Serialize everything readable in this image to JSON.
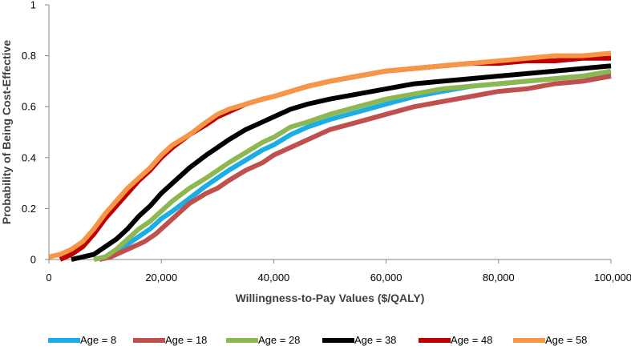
{
  "chart_data": {
    "type": "line",
    "title": "",
    "xlabel": "Willingness-to-Pay Values ($/QALY)",
    "ylabel": "Probability of Being Cost-Effective",
    "xlim": [
      0,
      100000
    ],
    "ylim": [
      0,
      1
    ],
    "x_ticks": [
      0,
      20000,
      40000,
      60000,
      80000,
      100000
    ],
    "x_tick_labels": [
      "0",
      "20,000",
      "40,000",
      "60,000",
      "80,000",
      "100,000"
    ],
    "y_ticks": [
      0,
      0.2,
      0.4,
      0.6,
      0.8,
      1
    ],
    "y_tick_labels": [
      "0",
      "0.2",
      "0.4",
      "0.6",
      "0.8",
      "1"
    ],
    "grid": false,
    "legend_position": "bottom",
    "series": [
      {
        "name": "Age = 8",
        "color": "#1CADE4",
        "x": [
          8000,
          10000,
          12000,
          14000,
          16000,
          18000,
          20000,
          22000,
          25000,
          28000,
          30000,
          32000,
          35000,
          38000,
          40000,
          43000,
          46000,
          50000,
          55000,
          60000,
          65000,
          70000,
          75000,
          80000,
          85000,
          90000,
          95000,
          100000
        ],
        "y": [
          0,
          0.01,
          0.03,
          0.06,
          0.09,
          0.12,
          0.16,
          0.19,
          0.24,
          0.29,
          0.32,
          0.35,
          0.39,
          0.43,
          0.45,
          0.49,
          0.52,
          0.55,
          0.58,
          0.61,
          0.64,
          0.66,
          0.68,
          0.69,
          0.7,
          0.71,
          0.72,
          0.73
        ]
      },
      {
        "name": "Age = 18",
        "color": "#C0504D",
        "x": [
          9000,
          11000,
          13000,
          15000,
          17000,
          19000,
          21000,
          23000,
          25000,
          28000,
          30000,
          32000,
          35000,
          38000,
          40000,
          43000,
          46000,
          50000,
          55000,
          60000,
          65000,
          70000,
          75000,
          80000,
          85000,
          90000,
          95000,
          100000
        ],
        "y": [
          0,
          0.01,
          0.03,
          0.05,
          0.07,
          0.1,
          0.14,
          0.18,
          0.22,
          0.26,
          0.28,
          0.31,
          0.35,
          0.38,
          0.41,
          0.44,
          0.47,
          0.51,
          0.54,
          0.57,
          0.6,
          0.62,
          0.64,
          0.66,
          0.67,
          0.69,
          0.7,
          0.72
        ]
      },
      {
        "name": "Age = 28",
        "color": "#8DB751",
        "x": [
          8000,
          10000,
          12000,
          14000,
          16000,
          18000,
          20000,
          22000,
          25000,
          28000,
          30000,
          32000,
          35000,
          38000,
          40000,
          43000,
          46000,
          50000,
          55000,
          60000,
          65000,
          70000,
          75000,
          80000,
          85000,
          90000,
          95000,
          100000
        ],
        "y": [
          0,
          0.01,
          0.04,
          0.08,
          0.12,
          0.15,
          0.19,
          0.23,
          0.28,
          0.32,
          0.35,
          0.38,
          0.42,
          0.46,
          0.48,
          0.52,
          0.54,
          0.57,
          0.6,
          0.63,
          0.65,
          0.67,
          0.68,
          0.69,
          0.7,
          0.71,
          0.72,
          0.74
        ]
      },
      {
        "name": "Age = 38",
        "color": "#000000",
        "x": [
          4000,
          6000,
          8000,
          10000,
          12000,
          14000,
          16000,
          18000,
          20000,
          22000,
          25000,
          28000,
          30000,
          32000,
          35000,
          38000,
          40000,
          43000,
          46000,
          50000,
          55000,
          60000,
          65000,
          70000,
          75000,
          80000,
          85000,
          90000,
          95000,
          100000
        ],
        "y": [
          0,
          0.01,
          0.02,
          0.05,
          0.08,
          0.12,
          0.17,
          0.21,
          0.26,
          0.3,
          0.36,
          0.41,
          0.44,
          0.47,
          0.51,
          0.54,
          0.56,
          0.59,
          0.61,
          0.63,
          0.65,
          0.67,
          0.69,
          0.7,
          0.71,
          0.72,
          0.73,
          0.74,
          0.75,
          0.76
        ]
      },
      {
        "name": "Age = 48",
        "color": "#C00000",
        "x": [
          2000,
          4000,
          6000,
          8000,
          10000,
          12000,
          14000,
          16000,
          18000,
          20000,
          22000,
          25000,
          28000,
          30000,
          32000,
          35000,
          38000,
          40000,
          43000,
          46000,
          50000,
          55000,
          60000,
          65000,
          70000,
          75000,
          80000,
          85000,
          90000,
          95000,
          100000
        ],
        "y": [
          0,
          0.02,
          0.05,
          0.1,
          0.16,
          0.21,
          0.26,
          0.31,
          0.35,
          0.4,
          0.44,
          0.49,
          0.53,
          0.56,
          0.58,
          0.61,
          0.63,
          0.64,
          0.66,
          0.68,
          0.7,
          0.72,
          0.74,
          0.75,
          0.76,
          0.77,
          0.77,
          0.78,
          0.78,
          0.79,
          0.79
        ]
      },
      {
        "name": "Age = 58",
        "color": "#F79646",
        "x": [
          0,
          2000,
          4000,
          6000,
          8000,
          10000,
          12000,
          14000,
          16000,
          18000,
          20000,
          22000,
          25000,
          28000,
          30000,
          32000,
          35000,
          38000,
          40000,
          43000,
          46000,
          50000,
          55000,
          60000,
          65000,
          70000,
          75000,
          80000,
          85000,
          90000,
          95000,
          100000
        ],
        "y": [
          0.01,
          0.02,
          0.04,
          0.07,
          0.12,
          0.18,
          0.23,
          0.28,
          0.32,
          0.36,
          0.41,
          0.45,
          0.49,
          0.54,
          0.57,
          0.59,
          0.61,
          0.63,
          0.64,
          0.66,
          0.68,
          0.7,
          0.72,
          0.74,
          0.75,
          0.76,
          0.77,
          0.78,
          0.79,
          0.8,
          0.8,
          0.81
        ]
      }
    ]
  }
}
